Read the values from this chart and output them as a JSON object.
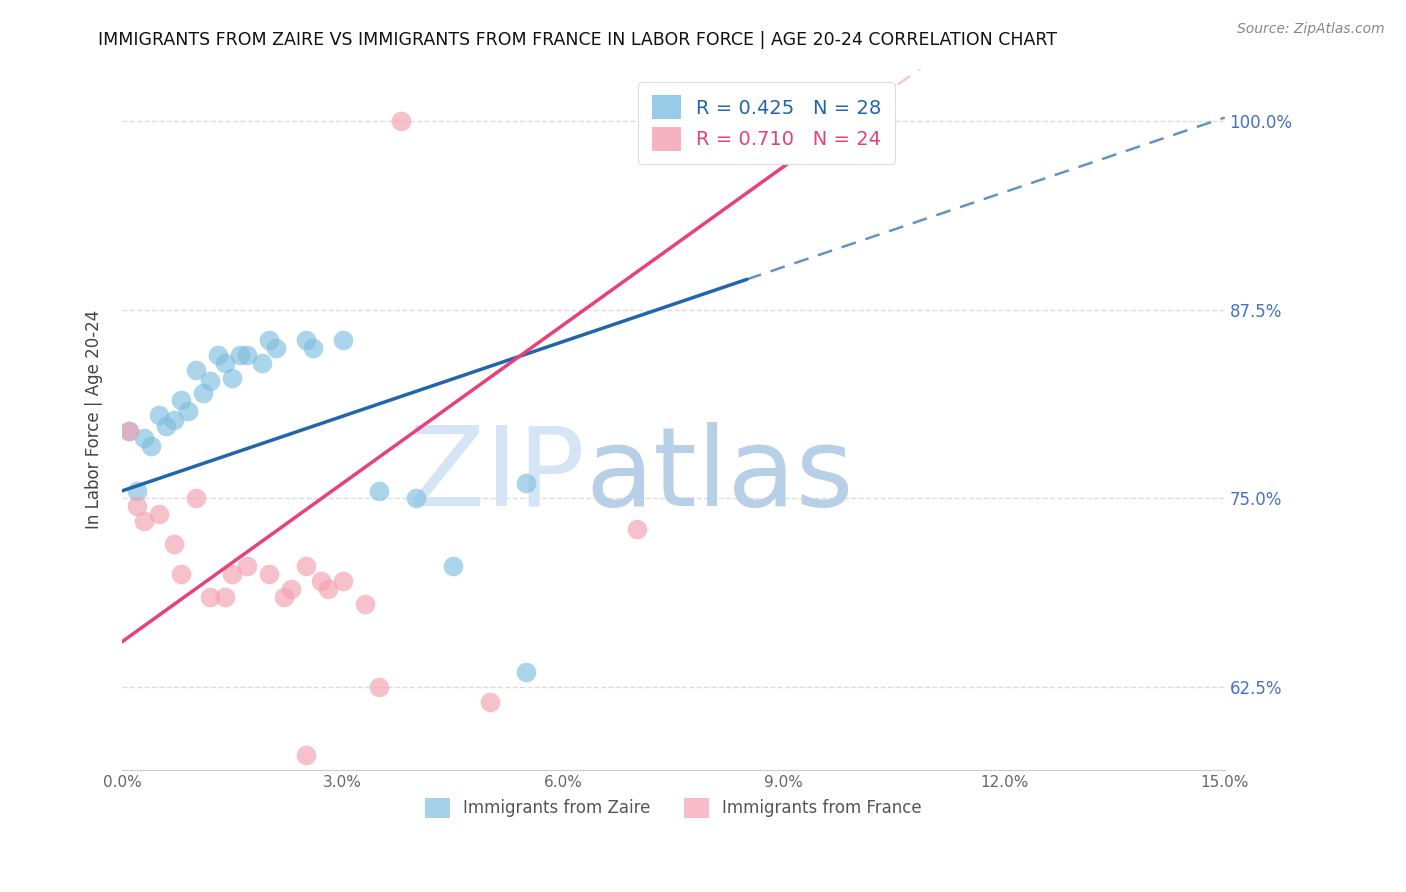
{
  "title": "IMMIGRANTS FROM ZAIRE VS IMMIGRANTS FROM FRANCE IN LABOR FORCE | AGE 20-24 CORRELATION CHART",
  "source": "Source: ZipAtlas.com",
  "ylabel": "In Labor Force | Age 20-24",
  "xlim": [
    0.0,
    15.0
  ],
  "ylim": [
    57.0,
    103.5
  ],
  "yticks": [
    62.5,
    75.0,
    87.5,
    100.0
  ],
  "xticks": [
    0.0,
    3.0,
    6.0,
    9.0,
    12.0,
    15.0
  ],
  "xtick_labels": [
    "0.0%",
    "3.0%",
    "6.0%",
    "9.0%",
    "12.0%",
    "15.0%"
  ],
  "ytick_labels": [
    "62.5%",
    "75.0%",
    "87.5%",
    "100.0%"
  ],
  "zaire_color": "#7fbfdf",
  "france_color": "#f4a0b0",
  "zaire_R": 0.425,
  "zaire_N": 28,
  "france_R": 0.71,
  "france_N": 24,
  "zaire_points": [
    [
      0.1,
      79.5
    ],
    [
      0.2,
      75.5
    ],
    [
      0.3,
      79.0
    ],
    [
      0.4,
      78.5
    ],
    [
      0.5,
      80.5
    ],
    [
      0.6,
      79.8
    ],
    [
      0.7,
      80.2
    ],
    [
      0.8,
      81.5
    ],
    [
      0.9,
      80.8
    ],
    [
      1.0,
      83.5
    ],
    [
      1.1,
      82.0
    ],
    [
      1.2,
      82.8
    ],
    [
      1.3,
      84.5
    ],
    [
      1.4,
      84.0
    ],
    [
      1.5,
      83.0
    ],
    [
      1.6,
      84.5
    ],
    [
      1.7,
      84.5
    ],
    [
      1.9,
      84.0
    ],
    [
      2.0,
      85.5
    ],
    [
      2.1,
      85.0
    ],
    [
      2.5,
      85.5
    ],
    [
      2.6,
      85.0
    ],
    [
      3.0,
      85.5
    ],
    [
      3.5,
      75.5
    ],
    [
      4.0,
      75.0
    ],
    [
      4.5,
      70.5
    ],
    [
      5.5,
      76.0
    ],
    [
      5.5,
      63.5
    ]
  ],
  "france_points": [
    [
      0.1,
      79.5
    ],
    [
      0.2,
      74.5
    ],
    [
      0.3,
      73.5
    ],
    [
      0.5,
      74.0
    ],
    [
      0.7,
      72.0
    ],
    [
      0.8,
      70.0
    ],
    [
      1.0,
      75.0
    ],
    [
      1.2,
      68.5
    ],
    [
      1.4,
      68.5
    ],
    [
      1.5,
      70.0
    ],
    [
      1.7,
      70.5
    ],
    [
      2.0,
      70.0
    ],
    [
      2.2,
      68.5
    ],
    [
      2.3,
      69.0
    ],
    [
      2.5,
      70.5
    ],
    [
      2.7,
      69.5
    ],
    [
      2.8,
      69.0
    ],
    [
      3.0,
      69.5
    ],
    [
      3.3,
      68.0
    ],
    [
      3.5,
      62.5
    ],
    [
      3.8,
      100.0
    ],
    [
      5.0,
      61.5
    ],
    [
      7.0,
      73.0
    ],
    [
      2.5,
      58.0
    ]
  ],
  "zaire_line_color": "#2166ac",
  "france_line_color": "#e8407a",
  "zaire_line": {
    "x0": 0.0,
    "y0": 75.5,
    "x1": 10.0,
    "y1": 92.0
  },
  "france_line": {
    "x0": 0.0,
    "y0": 65.5,
    "x1": 10.0,
    "y1": 100.5
  },
  "zaire_solid_end": 8.5,
  "france_solid_end": 10.0,
  "watermark_zip": "ZIP",
  "watermark_atlas": "atlas",
  "watermark_color_zip": "#d0dff0",
  "watermark_color_atlas": "#b8d0f0",
  "background_color": "#ffffff",
  "grid_color": "#dddddd",
  "title_color": "#111111",
  "axis_label_color": "#444444",
  "right_tick_color": "#4472c4",
  "bottom_legend_labels": [
    "Immigrants from Zaire",
    "Immigrants from France"
  ]
}
